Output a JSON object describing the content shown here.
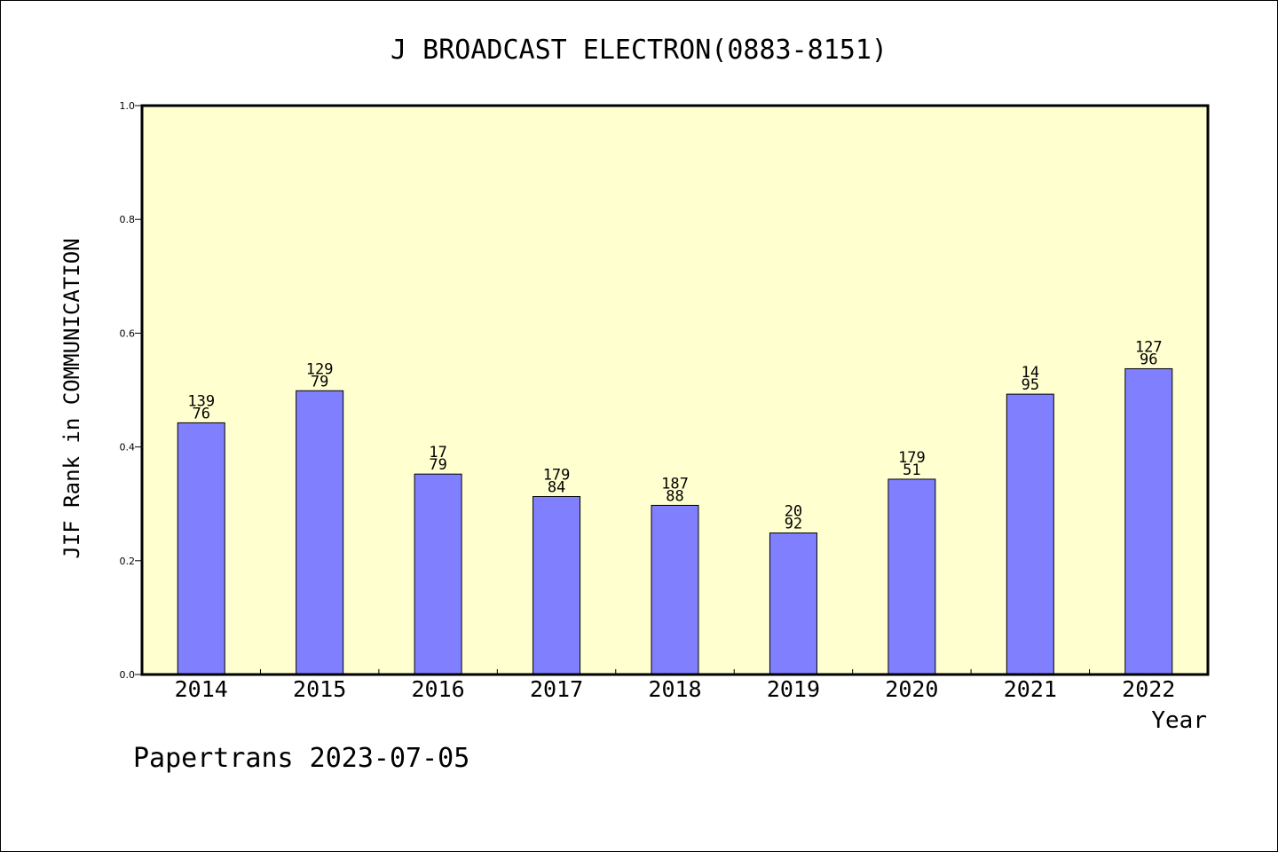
{
  "chart_data": {
    "type": "bar",
    "title": "J BROADCAST ELECTRON(0883-8151)",
    "xlabel": "Year",
    "ylabel": "JIF Rank in COMMUNICATION",
    "ylim": [
      0,
      1.0
    ],
    "yticks": [
      "0.0",
      "0.2",
      "0.4",
      "0.6",
      "0.8",
      "1.0"
    ],
    "categories": [
      "2014",
      "2015",
      "2016",
      "2017",
      "2018",
      "2019",
      "2020",
      "2021",
      "2022"
    ],
    "values": [
      0.4424,
      0.4988,
      0.3523,
      0.3128,
      0.2973,
      0.2488,
      0.3433,
      0.4928,
      0.5375
    ],
    "rank_labels": [
      "139",
      "129",
      "17",
      "179",
      "187",
      "20",
      "179",
      "14",
      "127"
    ],
    "total_labels": [
      "76",
      "79",
      "79",
      "84",
      "88",
      "92",
      "51",
      "95",
      "96"
    ],
    "plot_background": "#ffffd0",
    "bar_color": "#8080ff",
    "grid": false
  },
  "footer": {
    "credit": "Papertrans 2023-07-05"
  }
}
